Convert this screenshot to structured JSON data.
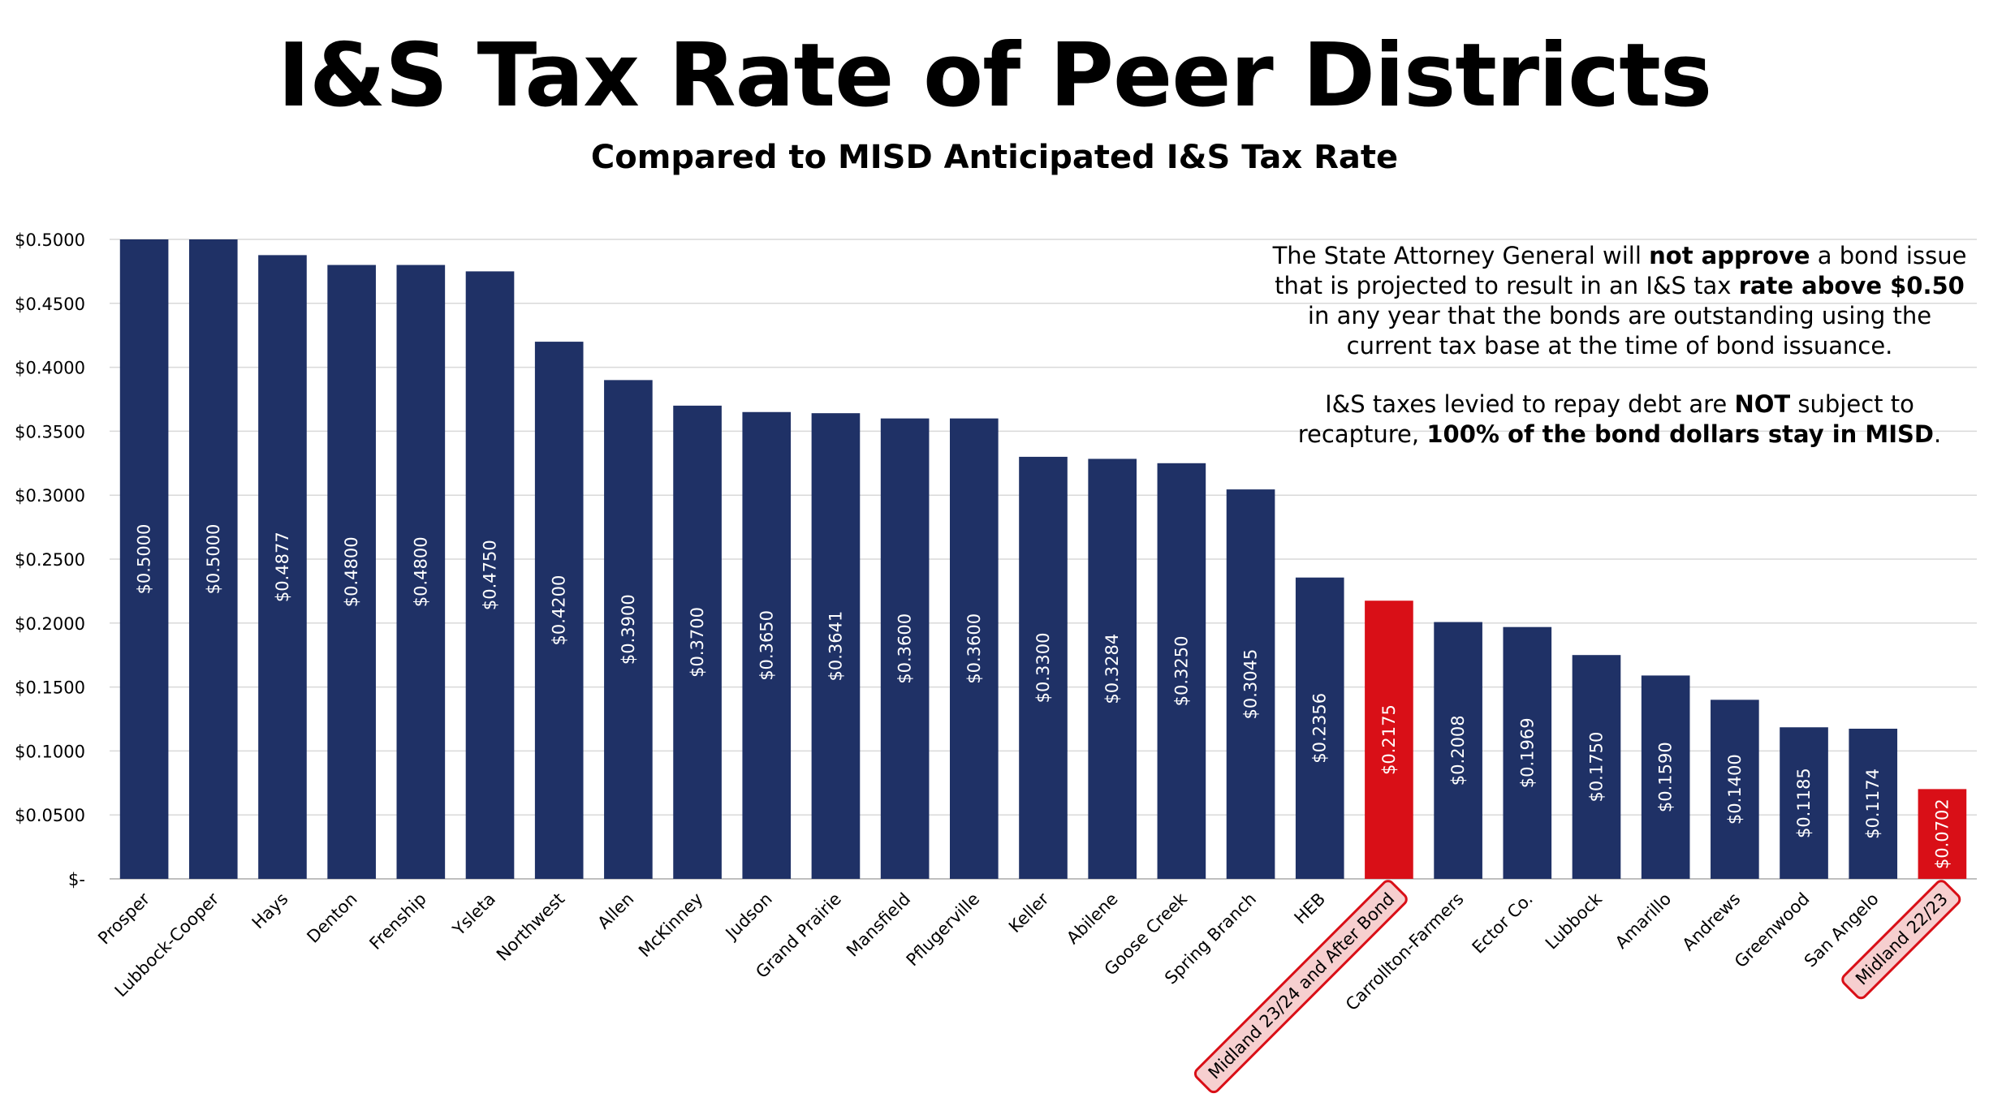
{
  "title": "I&S Tax Rate of Peer Districts",
  "subtitle": "Compared to MISD Anticipated I&S Tax Rate",
  "note1": {
    "p1": "The State Attorney General will ",
    "b1": "not approve",
    "p2": " a bond issue that is projected to result in an I&S tax ",
    "b2": "rate above $0.50",
    "p3": " in any year that the bonds are outstanding using the current tax base at the time of bond issuance."
  },
  "note2": {
    "p1": "I&S taxes levied to repay debt are ",
    "b1": "NOT",
    "p2": " subject to recapture, ",
    "b2": "100% of the bond dollars stay in MISD",
    "p3": "."
  },
  "colors": {
    "bar": "#1f3166",
    "highlight": "#d90f17",
    "grid": "#d9d9d9",
    "highlight_label_bg": "#f6cfcf"
  },
  "chart_data": {
    "type": "bar",
    "categories": [
      "Prosper",
      "Lubbock-Cooper",
      "Hays",
      "Denton",
      "Frenship",
      "Ysleta",
      "Northwest",
      "Allen",
      "McKinney",
      "Judson",
      "Grand Prairie",
      "Mansfield",
      "Pflugerville",
      "Keller",
      "Abilene",
      "Goose Creek",
      "Spring Branch",
      "HEB",
      "Midland 23/24 and After Bond",
      "Carrollton-Farmers",
      "Ector Co.",
      "Lubbock",
      "Amarillo",
      "Andrews",
      "Greenwood",
      "San Angelo",
      "Midland 22/23"
    ],
    "values": [
      0.5,
      0.5,
      0.4877,
      0.48,
      0.48,
      0.475,
      0.42,
      0.39,
      0.37,
      0.365,
      0.3641,
      0.36,
      0.36,
      0.33,
      0.3284,
      0.325,
      0.3045,
      0.2356,
      0.2175,
      0.2008,
      0.1969,
      0.175,
      0.159,
      0.14,
      0.1185,
      0.1174,
      0.0702
    ],
    "data_labels": [
      "$0.5000",
      "$0.5000",
      "$0.4877",
      "$0.4800",
      "$0.4800",
      "$0.4750",
      "$0.4200",
      "$0.3900",
      "$0.3700",
      "$0.3650",
      "$0.3641",
      "$0.3600",
      "$0.3600",
      "$0.3300",
      "$0.3284",
      "$0.3250",
      "$0.3045",
      "$0.2356",
      "$0.2175",
      "$0.2008",
      "$0.1969",
      "$0.1750",
      "$0.1590",
      "$0.1400",
      "$0.1185",
      "$0.1174",
      "$0.0702"
    ],
    "highlighted": [
      "Midland 23/24 and After Bond",
      "Midland 22/23"
    ],
    "yticks": [
      0,
      0.05,
      0.1,
      0.15,
      0.2,
      0.25,
      0.3,
      0.35,
      0.4,
      0.45,
      0.5
    ],
    "ytick_labels": [
      "$-",
      "$0.0500",
      "$0.1000",
      "$0.1500",
      "$0.2000",
      "$0.2500",
      "$0.3000",
      "$0.3500",
      "$0.4000",
      "$0.4500",
      "$0.5000"
    ],
    "ylim": [
      0,
      0.5
    ],
    "grid": true,
    "legend": "none"
  }
}
